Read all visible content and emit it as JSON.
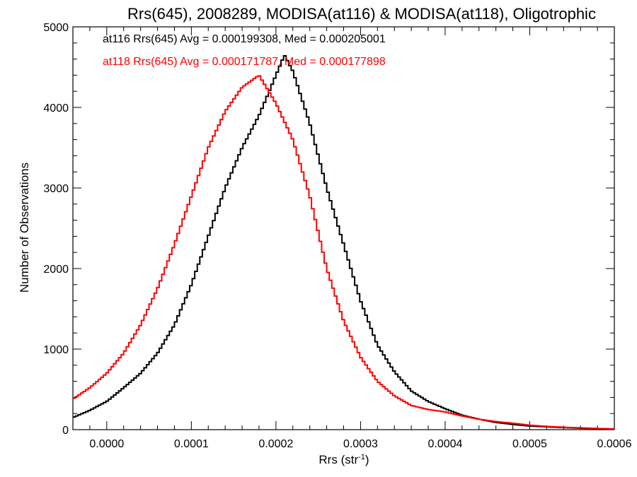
{
  "chart_data": {
    "type": "line",
    "title": "Rrs(645), 2008289, MODISA(at116) & MODISA(at118), Oligotrophic",
    "xlabel": "Rrs (str",
    "xlabel_sup": "-1",
    "xlabel_close": ")",
    "ylabel": "Number of Observations",
    "xlim": [
      -4e-05,
      0.0006
    ],
    "ylim": [
      0,
      5000
    ],
    "x_ticks": [
      0.0,
      0.0001,
      0.0002,
      0.0003,
      0.0004,
      0.0005,
      0.0006
    ],
    "x_tick_labels": [
      "0.0000",
      "0.0001",
      "0.0002",
      "0.0003",
      "0.0004",
      "0.0005",
      "0.0006"
    ],
    "y_ticks": [
      0,
      1000,
      2000,
      3000,
      4000,
      5000
    ],
    "y_tick_labels": [
      "0",
      "1000",
      "2000",
      "3000",
      "4000",
      "5000"
    ],
    "grid": false,
    "step": true,
    "annotations": [
      {
        "text": "at116 Rrs(645) Avg = 0.000199308, Med = 0.000205001",
        "color": "#000000"
      },
      {
        "text": "at118 Rrs(645) Avg = 0.000171787, Med = 0.000177898",
        "color": "#ff0000"
      }
    ],
    "series": [
      {
        "color": "#000000",
        "x": [
          -4e-05,
          -2e-05,
          0.0,
          2e-05,
          4e-05,
          6e-05,
          8e-05,
          0.0001,
          0.00012,
          0.00014,
          0.00016,
          0.00018,
          0.0002,
          0.00021,
          0.00022,
          0.00024,
          0.00026,
          0.00028,
          0.0003,
          0.00032,
          0.00034,
          0.00036,
          0.00038,
          0.0004,
          0.00042,
          0.00044,
          0.00046,
          0.00048,
          0.0005,
          0.00052,
          0.00054,
          0.00056,
          0.00058,
          0.0006
        ],
        "y": [
          150,
          240,
          350,
          520,
          700,
          950,
          1300,
          1800,
          2400,
          3000,
          3500,
          3900,
          4400,
          4650,
          4450,
          3800,
          3000,
          2300,
          1600,
          1050,
          720,
          480,
          350,
          260,
          180,
          130,
          90,
          65,
          45,
          35,
          25,
          18,
          12,
          8
        ]
      },
      {
        "color": "#ff0000",
        "x": [
          -4e-05,
          -2e-05,
          0.0,
          2e-05,
          4e-05,
          6e-05,
          8e-05,
          0.0001,
          0.00012,
          0.00014,
          0.00016,
          0.00018,
          0.0002,
          0.00022,
          0.00024,
          0.00026,
          0.00028,
          0.0003,
          0.00032,
          0.00034,
          0.00036,
          0.00038,
          0.0004,
          0.00042,
          0.00044,
          0.00046,
          0.00048,
          0.0005,
          0.00052,
          0.00054,
          0.00056,
          0.00058,
          0.0006
        ],
        "y": [
          380,
          520,
          700,
          950,
          1300,
          1750,
          2300,
          2900,
          3500,
          3950,
          4250,
          4400,
          4050,
          3600,
          2900,
          2000,
          1350,
          900,
          600,
          420,
          300,
          250,
          220,
          170,
          130,
          100,
          80,
          55,
          40,
          30,
          22,
          15,
          10
        ]
      }
    ]
  }
}
